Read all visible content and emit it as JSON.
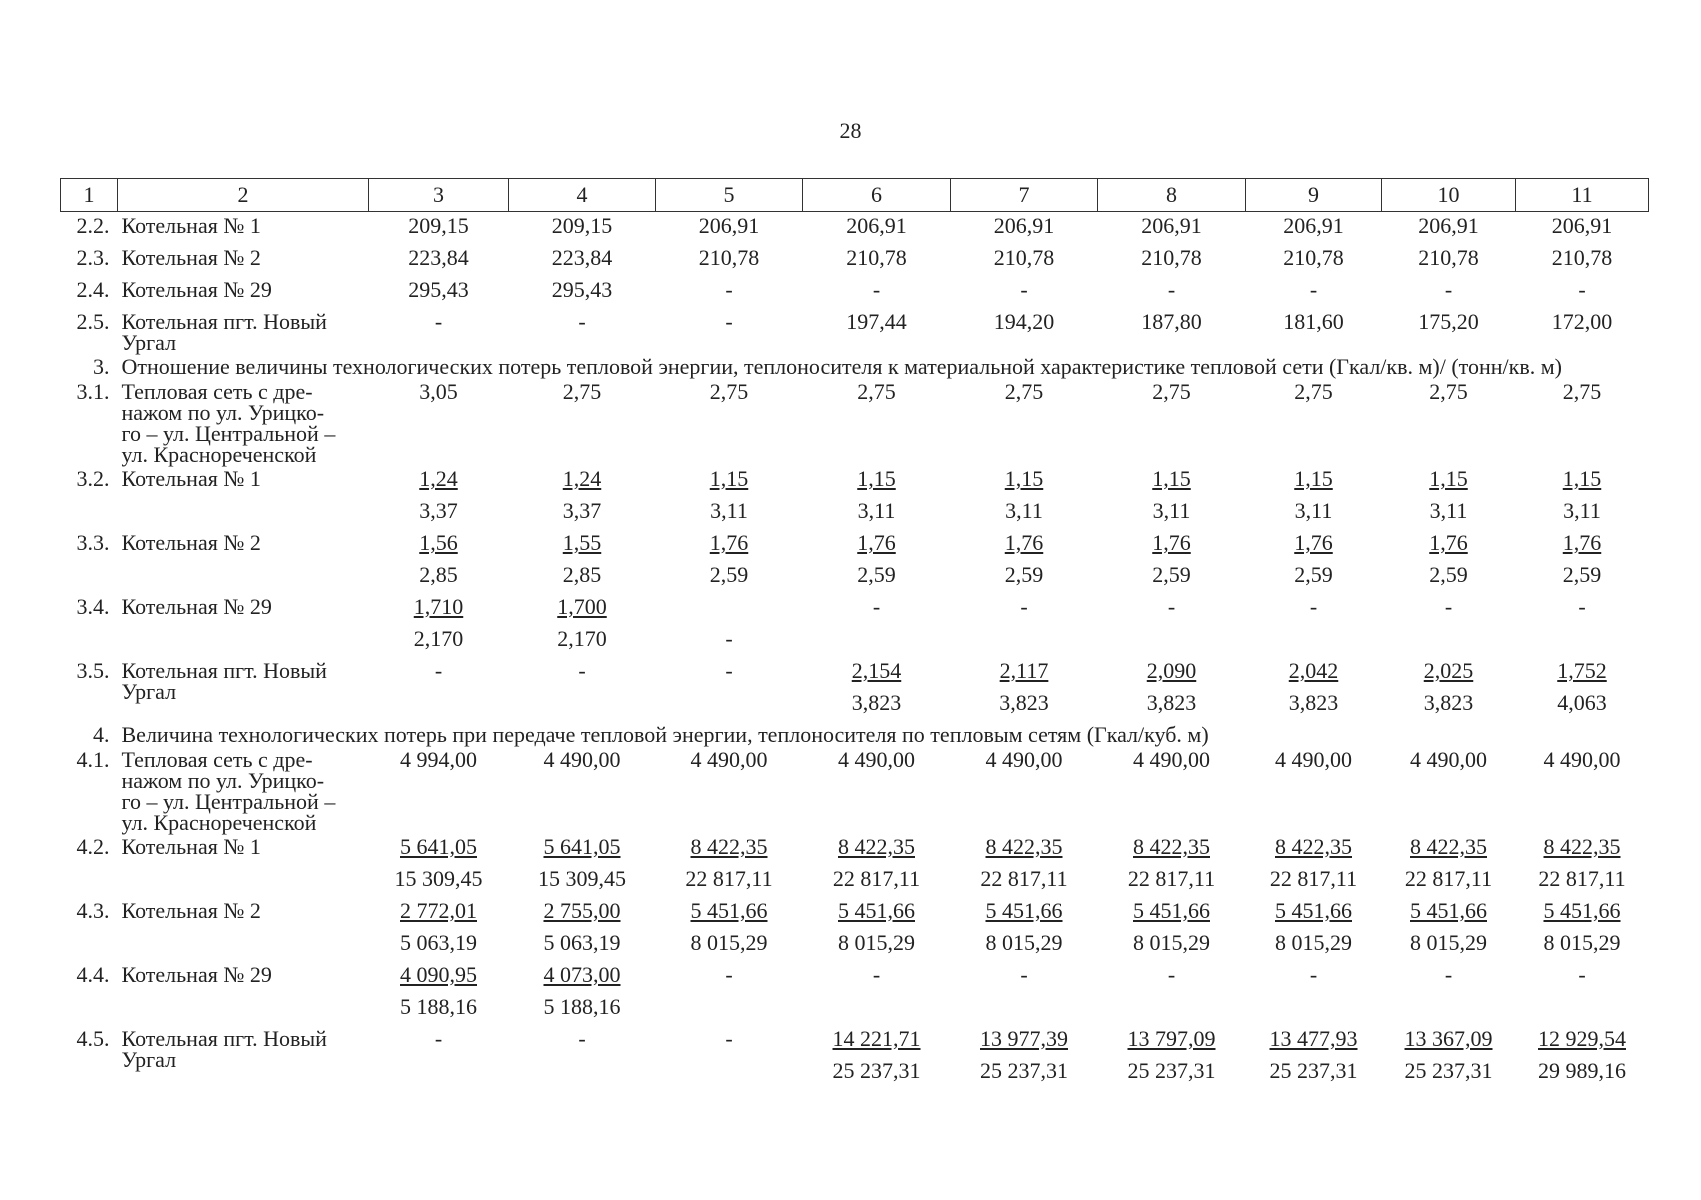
{
  "page_number": "28",
  "header": [
    "1",
    "2",
    "3",
    "4",
    "5",
    "6",
    "7",
    "8",
    "9",
    "10",
    "11"
  ],
  "rows": [
    {
      "num": "2.2.",
      "name": "Котельная № 1",
      "cells": [
        [
          "209,15"
        ],
        [
          "209,15"
        ],
        [
          "206,91"
        ],
        [
          "206,91"
        ],
        [
          "206,91"
        ],
        [
          "206,91"
        ],
        [
          "206,91"
        ],
        [
          "206,91"
        ],
        [
          "206,91"
        ]
      ]
    },
    {
      "num": "2.3.",
      "name": "Котельная № 2",
      "cells": [
        [
          "223,84"
        ],
        [
          "223,84"
        ],
        [
          "210,78"
        ],
        [
          "210,78"
        ],
        [
          "210,78"
        ],
        [
          "210,78"
        ],
        [
          "210,78"
        ],
        [
          "210,78"
        ],
        [
          "210,78"
        ]
      ]
    },
    {
      "num": "2.4.",
      "name": "Котельная № 29",
      "cells": [
        [
          "295,43"
        ],
        [
          "295,43"
        ],
        [
          "-"
        ],
        [
          "-"
        ],
        [
          "-"
        ],
        [
          "-"
        ],
        [
          "-"
        ],
        [
          "-"
        ],
        [
          "-"
        ]
      ]
    },
    {
      "num": "2.5.",
      "name": "Котельная пгт. Новый Ургал",
      "cells": [
        [
          "-"
        ],
        [
          "-"
        ],
        [
          "-"
        ],
        [
          "197,44"
        ],
        [
          "194,20"
        ],
        [
          "187,80"
        ],
        [
          "181,60"
        ],
        [
          "175,20"
        ],
        [
          "172,00"
        ]
      ]
    },
    {
      "num": "3.",
      "text": "Отношение величины технологических потерь тепловой энергии, теплоносителя к материальной характеристике тепловой сети (Гкал/кв. м)/ (тонн/кв. м)"
    },
    {
      "num": "3.1.",
      "name": "Тепловая сеть с дре-\nнажом по ул. Урицко-\nго – ул. Центральной –\nул. Краснореченской",
      "cells": [
        [
          "3,05"
        ],
        [
          "2,75"
        ],
        [
          "2,75"
        ],
        [
          "2,75"
        ],
        [
          "2,75"
        ],
        [
          "2,75"
        ],
        [
          "2,75"
        ],
        [
          "2,75"
        ],
        [
          "2,75"
        ]
      ]
    },
    {
      "num": "3.2.",
      "name": "Котельная № 1",
      "cells": [
        [
          "1,24",
          "3,37"
        ],
        [
          "1,24",
          "3,37"
        ],
        [
          "1,15",
          "3,11"
        ],
        [
          "1,15",
          "3,11"
        ],
        [
          "1,15",
          "3,11"
        ],
        [
          "1,15",
          "3,11"
        ],
        [
          "1,15",
          "3,11"
        ],
        [
          "1,15",
          "3,11"
        ],
        [
          "1,15",
          "3,11"
        ]
      ]
    },
    {
      "num": "3.3.",
      "name": "Котельная № 2",
      "cells": [
        [
          "1,56",
          "2,85"
        ],
        [
          "1,55",
          "2,85"
        ],
        [
          "1,76",
          "2,59"
        ],
        [
          "1,76",
          "2,59"
        ],
        [
          "1,76",
          "2,59"
        ],
        [
          "1,76",
          "2,59"
        ],
        [
          "1,76",
          "2,59"
        ],
        [
          "1,76",
          "2,59"
        ],
        [
          "1,76",
          "2,59"
        ]
      ]
    },
    {
      "num": "3.4.",
      "name": "Котельная № 29",
      "cells": [
        [
          "1,710",
          "2,170"
        ],
        [
          "1,700",
          "2,170"
        ],
        [
          null,
          "-"
        ],
        [
          "-"
        ],
        [
          "-"
        ],
        [
          "-"
        ],
        [
          "-"
        ],
        [
          "-"
        ],
        [
          "-"
        ]
      ]
    },
    {
      "num": "3.5.",
      "name": "Котельная пгт. Новый Ургал",
      "cells": [
        [
          "-"
        ],
        [
          "-"
        ],
        [
          "-"
        ],
        [
          "2,154",
          "3,823"
        ],
        [
          "2,117",
          "3,823"
        ],
        [
          "2,090",
          "3,823"
        ],
        [
          "2,042",
          "3,823"
        ],
        [
          "2,025",
          "3,823"
        ],
        [
          "1,752",
          "4,063"
        ]
      ]
    },
    {
      "num": "4.",
      "text": "Величина технологических потерь при передаче тепловой энергии, теплоносителя по тепловым сетям (Гкал/куб. м)"
    },
    {
      "num": "4.1.",
      "name": "Тепловая сеть с дре-\nнажом по ул. Урицко-\nго – ул. Центральной –\nул. Краснореченской",
      "cells": [
        [
          "4 994,00"
        ],
        [
          "4 490,00"
        ],
        [
          "4 490,00"
        ],
        [
          "4 490,00"
        ],
        [
          "4 490,00"
        ],
        [
          "4 490,00"
        ],
        [
          "4 490,00"
        ],
        [
          "4 490,00"
        ],
        [
          "4 490,00"
        ]
      ]
    },
    {
      "num": "4.2.",
      "name": "Котельная № 1",
      "cells": [
        [
          "5 641,05",
          "15 309,45"
        ],
        [
          "5 641,05",
          "15 309,45"
        ],
        [
          "8 422,35",
          "22 817,11"
        ],
        [
          "8 422,35",
          "22 817,11"
        ],
        [
          "8 422,35",
          "22 817,11"
        ],
        [
          "8 422,35",
          "22 817,11"
        ],
        [
          "8 422,35",
          "22 817,11"
        ],
        [
          "8 422,35",
          "22 817,11"
        ],
        [
          "8 422,35",
          "22 817,11"
        ]
      ]
    },
    {
      "num": "4.3.",
      "name": "Котельная № 2",
      "cells": [
        [
          "2 772,01",
          "5 063,19"
        ],
        [
          "2 755,00",
          "5 063,19"
        ],
        [
          "5 451,66",
          "8 015,29"
        ],
        [
          "5 451,66",
          "8 015,29"
        ],
        [
          "5 451,66",
          "8 015,29"
        ],
        [
          "5 451,66",
          "8 015,29"
        ],
        [
          "5 451,66",
          "8 015,29"
        ],
        [
          "5 451,66",
          "8 015,29"
        ],
        [
          "5 451,66",
          "8 015,29"
        ]
      ]
    },
    {
      "num": "4.4.",
      "name": "Котельная № 29",
      "cells": [
        [
          "4 090,95",
          "5 188,16"
        ],
        [
          "4 073,00",
          "5 188,16"
        ],
        [
          "-"
        ],
        [
          "-"
        ],
        [
          "-"
        ],
        [
          "-"
        ],
        [
          "-"
        ],
        [
          "-"
        ],
        [
          "-"
        ]
      ]
    },
    {
      "num": "4.5.",
      "name": "Котельная пгт. Новый Ургал",
      "cells": [
        [
          "-"
        ],
        [
          "-"
        ],
        [
          "-"
        ],
        [
          "14 221,71",
          "25 237,31"
        ],
        [
          "13 977,39",
          "25 237,31"
        ],
        [
          "13 797,09",
          "25 237,31"
        ],
        [
          "13 477,93",
          "25 237,31"
        ],
        [
          "13 367,09",
          "25 237,31"
        ],
        [
          "12 929,54",
          "29 989,16"
        ]
      ]
    }
  ]
}
